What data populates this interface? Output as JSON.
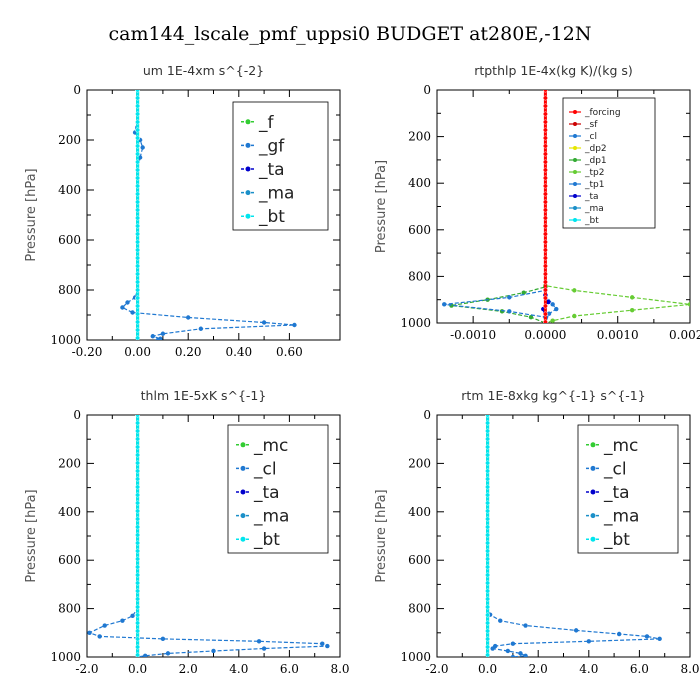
{
  "figure_title": "cam144_lscale_pmf_uppsi0  BUDGET at280E,-12N",
  "colors": {
    "_f": "#33cc33",
    "_gf": "#1f78d1",
    "_ta": "#0000cc",
    "_ma": "#1a8fc8",
    "_bt": "#00e5ee",
    "_mc": "#33cc33",
    "_cl": "#1f78d1",
    "_forcing": "#ff0000",
    "_sf": "#cc0000",
    "_dp2": "#e6e600",
    "_dp1": "#33aa33",
    "_tp2": "#66cc33",
    "_tp1": "#1f78d1"
  },
  "chart_data": [
    {
      "type": "line",
      "title": "um   1E-4xm  s^{-2}",
      "ylabel": "Pressure [hPa]",
      "xlim": [
        -0.2,
        0.8
      ],
      "ylim": [
        1000,
        0
      ],
      "xticks": [
        "-0.20",
        "0.00",
        "0.20",
        "0.40",
        "0.60"
      ],
      "xtick_values": [
        -0.2,
        0.0,
        0.2,
        0.4,
        0.6
      ],
      "yticks": [
        "0",
        "200",
        "400",
        "600",
        "800",
        "1000"
      ],
      "ytick_values": [
        0,
        200,
        400,
        600,
        800,
        1000
      ],
      "legend_style": "big",
      "legend": [
        "_f",
        "_gf",
        "_ta",
        "_ma",
        "_bt"
      ],
      "series": [
        {
          "name": "_gf",
          "points": [
            [
              0,
              0
            ],
            [
              0,
              100
            ],
            [
              -0.01,
              170
            ],
            [
              0.01,
              200
            ],
            [
              0.02,
              230
            ],
            [
              0.01,
              270
            ],
            [
              0,
              320
            ],
            [
              0,
              500
            ],
            [
              0,
              800
            ],
            [
              -0.01,
              830
            ],
            [
              -0.04,
              850
            ],
            [
              -0.06,
              870
            ],
            [
              -0.02,
              890
            ],
            [
              0.2,
              910
            ],
            [
              0.5,
              930
            ],
            [
              0.62,
              940
            ],
            [
              0.25,
              955
            ],
            [
              0.1,
              975
            ],
            [
              0.06,
              985
            ],
            [
              0.09,
              995
            ],
            [
              0.08,
              1000
            ]
          ]
        },
        {
          "name": "_f",
          "points": [
            [
              0,
              0
            ],
            [
              0,
              1000
            ]
          ]
        },
        {
          "name": "_bt",
          "points": [
            [
              0,
              0
            ],
            [
              0,
              1000
            ]
          ]
        }
      ]
    },
    {
      "type": "line",
      "title": "rtpthlp   1E-4x(kg K)/(kg s)",
      "ylabel": "Pressure [hPa]",
      "xlim": [
        -0.0015,
        0.002
      ],
      "ylim": [
        1000,
        0
      ],
      "xticks": [
        "-0.0010",
        "0.0000",
        "0.0010",
        "0.0020"
      ],
      "xtick_values": [
        -0.001,
        0.0,
        0.001,
        0.002
      ],
      "yticks": [
        "0",
        "200",
        "400",
        "600",
        "800",
        "1000"
      ],
      "ytick_values": [
        0,
        200,
        400,
        600,
        800,
        1000
      ],
      "legend_style": "small",
      "legend": [
        "_forcing",
        "_sf",
        "_cl",
        "_dp2",
        "_dp1",
        "_tp2",
        "_tp1",
        "_ta",
        "_ma",
        "_bt"
      ],
      "series": [
        {
          "name": "_tp2",
          "points": [
            [
              0,
              0
            ],
            [
              0,
              840
            ],
            [
              0.0004,
              860
            ],
            [
              0.0012,
              890
            ],
            [
              0.002,
              920
            ],
            [
              0.0012,
              945
            ],
            [
              0.0004,
              970
            ],
            [
              0.0001,
              990
            ],
            [
              0,
              1000
            ]
          ]
        },
        {
          "name": "_dp1",
          "points": [
            [
              0,
              0
            ],
            [
              0,
              845
            ],
            [
              -0.0003,
              870
            ],
            [
              -0.0008,
              900
            ],
            [
              -0.0013,
              925
            ],
            [
              -0.0006,
              950
            ],
            [
              -0.0002,
              975
            ],
            [
              0,
              1000
            ]
          ]
        },
        {
          "name": "_tp1",
          "points": [
            [
              0,
              0
            ],
            [
              0,
              860
            ],
            [
              -0.0005,
              890
            ],
            [
              -0.0014,
              920
            ],
            [
              -0.0005,
              950
            ],
            [
              0,
              975
            ],
            [
              0,
              1000
            ]
          ]
        },
        {
          "name": "_cl",
          "points": [
            [
              0,
              0
            ],
            [
              0,
              880
            ],
            [
              0.0001,
              920
            ],
            [
              0.00015,
              940
            ],
            [
              5e-05,
              960
            ],
            [
              0,
              1000
            ]
          ]
        },
        {
          "name": "_ta",
          "points": [
            [
              0,
              0
            ],
            [
              0,
              880
            ],
            [
              4e-05,
              910
            ],
            [
              -3e-05,
              940
            ],
            [
              0,
              1000
            ]
          ]
        },
        {
          "name": "_forcing",
          "points": [
            [
              0,
              0
            ],
            [
              0,
              1000
            ]
          ]
        }
      ]
    },
    {
      "type": "line",
      "title": "thlm   1E-5xK  s^{-1}",
      "ylabel": "Pressure [hPa]",
      "xlim": [
        -2.0,
        8.0
      ],
      "ylim": [
        1000,
        0
      ],
      "xticks": [
        "-2.0",
        "0.0",
        "2.0",
        "4.0",
        "6.0",
        "8.0"
      ],
      "xtick_values": [
        -2.0,
        0.0,
        2.0,
        4.0,
        6.0,
        8.0
      ],
      "yticks": [
        "0",
        "200",
        "400",
        "600",
        "800",
        "1000"
      ],
      "ytick_values": [
        0,
        200,
        400,
        600,
        800,
        1000
      ],
      "legend_style": "big",
      "legend": [
        "_mc",
        "_cl",
        "_ta",
        "_ma",
        "_bt"
      ],
      "series": [
        {
          "name": "_cl",
          "points": [
            [
              0,
              0
            ],
            [
              0,
              800
            ],
            [
              -0.2,
              830
            ],
            [
              -0.6,
              850
            ],
            [
              -1.3,
              870
            ],
            [
              -1.9,
              900
            ],
            [
              -1.5,
              915
            ],
            [
              1.0,
              925
            ],
            [
              4.8,
              935
            ],
            [
              7.3,
              945
            ],
            [
              7.5,
              955
            ],
            [
              5.0,
              965
            ],
            [
              3.0,
              975
            ],
            [
              1.2,
              985
            ],
            [
              0.3,
              995
            ],
            [
              0,
              1000
            ]
          ]
        },
        {
          "name": "_mc",
          "points": [
            [
              0,
              0
            ],
            [
              0,
              1000
            ]
          ]
        },
        {
          "name": "_bt",
          "points": [
            [
              0,
              0
            ],
            [
              0,
              1000
            ]
          ]
        }
      ]
    },
    {
      "type": "line",
      "title": "rtm   1E-8xkg kg^{-1} s^{-1}",
      "ylabel": "Pressure [hPa]",
      "xlim": [
        -2.0,
        8.0
      ],
      "ylim": [
        1000,
        0
      ],
      "xticks": [
        "-2.0",
        "0.0",
        "2.0",
        "4.0",
        "6.0",
        "8.0"
      ],
      "xtick_values": [
        -2.0,
        0.0,
        2.0,
        4.0,
        6.0,
        8.0
      ],
      "yticks": [
        "0",
        "200",
        "400",
        "600",
        "800",
        "1000"
      ],
      "ytick_values": [
        0,
        200,
        400,
        600,
        800,
        1000
      ],
      "legend_style": "big",
      "legend": [
        "_mc",
        "_cl",
        "_ta",
        "_ma",
        "_bt"
      ],
      "series": [
        {
          "name": "_cl",
          "points": [
            [
              0,
              0
            ],
            [
              0,
              800
            ],
            [
              0.1,
              825
            ],
            [
              0.5,
              850
            ],
            [
              1.5,
              870
            ],
            [
              3.5,
              890
            ],
            [
              5.2,
              905
            ],
            [
              6.3,
              915
            ],
            [
              6.8,
              925
            ],
            [
              4.0,
              935
            ],
            [
              1.0,
              945
            ],
            [
              0.3,
              955
            ],
            [
              0.2,
              965
            ],
            [
              0.8,
              975
            ],
            [
              1.3,
              985
            ],
            [
              1.5,
              995
            ],
            [
              1.0,
              1000
            ]
          ]
        },
        {
          "name": "_mc",
          "points": [
            [
              0,
              0
            ],
            [
              0,
              1000
            ]
          ]
        },
        {
          "name": "_bt",
          "points": [
            [
              0,
              0
            ],
            [
              0,
              1000
            ]
          ]
        }
      ]
    }
  ]
}
